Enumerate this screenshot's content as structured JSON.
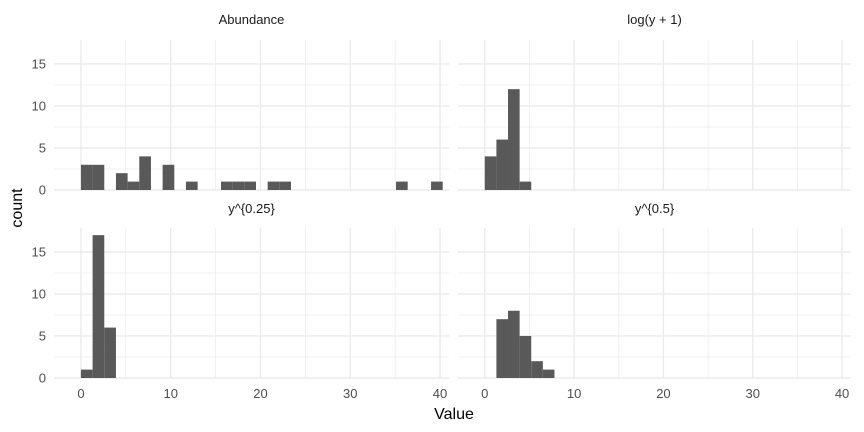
{
  "chart_data": {
    "type": "bar",
    "subtype": "faceted-histogram",
    "xlabel": "Value",
    "ylabel": "count",
    "xlim": [
      -3,
      41
    ],
    "ylim": [
      0,
      17.85
    ],
    "x_ticks": [
      0,
      10,
      20,
      30,
      40
    ],
    "y_ticks": [
      0,
      5,
      10,
      15
    ],
    "grid": true,
    "legend": "none",
    "bar_color": "#595959",
    "grid_color": "#ebebeb",
    "panels": [
      {
        "title": "Abundance",
        "bin_width": 1.3,
        "bins": [
          {
            "x": 0,
            "count": 3
          },
          {
            "x": 1.3,
            "count": 3
          },
          {
            "x": 3.9,
            "count": 2
          },
          {
            "x": 5.2,
            "count": 1
          },
          {
            "x": 6.5,
            "count": 4
          },
          {
            "x": 9.1,
            "count": 3
          },
          {
            "x": 11.7,
            "count": 1
          },
          {
            "x": 15.6,
            "count": 1
          },
          {
            "x": 16.9,
            "count": 1
          },
          {
            "x": 18.2,
            "count": 1
          },
          {
            "x": 20.8,
            "count": 1
          },
          {
            "x": 22.1,
            "count": 1
          },
          {
            "x": 35.1,
            "count": 1
          },
          {
            "x": 39.0,
            "count": 1
          }
        ]
      },
      {
        "title": "log(y + 1)",
        "bin_width": 1.3,
        "bins": [
          {
            "x": 0,
            "count": 4
          },
          {
            "x": 1.3,
            "count": 6
          },
          {
            "x": 2.6,
            "count": 12
          },
          {
            "x": 3.9,
            "count": 1
          }
        ]
      },
      {
        "title": "y^{0.25}",
        "bin_width": 1.3,
        "bins": [
          {
            "x": 0,
            "count": 1
          },
          {
            "x": 1.3,
            "count": 17
          },
          {
            "x": 2.6,
            "count": 6
          }
        ]
      },
      {
        "title": "y^{0.5}",
        "bin_width": 1.3,
        "bins": [
          {
            "x": 1.3,
            "count": 7
          },
          {
            "x": 2.6,
            "count": 8
          },
          {
            "x": 3.9,
            "count": 5
          },
          {
            "x": 5.2,
            "count": 2
          },
          {
            "x": 6.5,
            "count": 1
          }
        ]
      }
    ]
  }
}
